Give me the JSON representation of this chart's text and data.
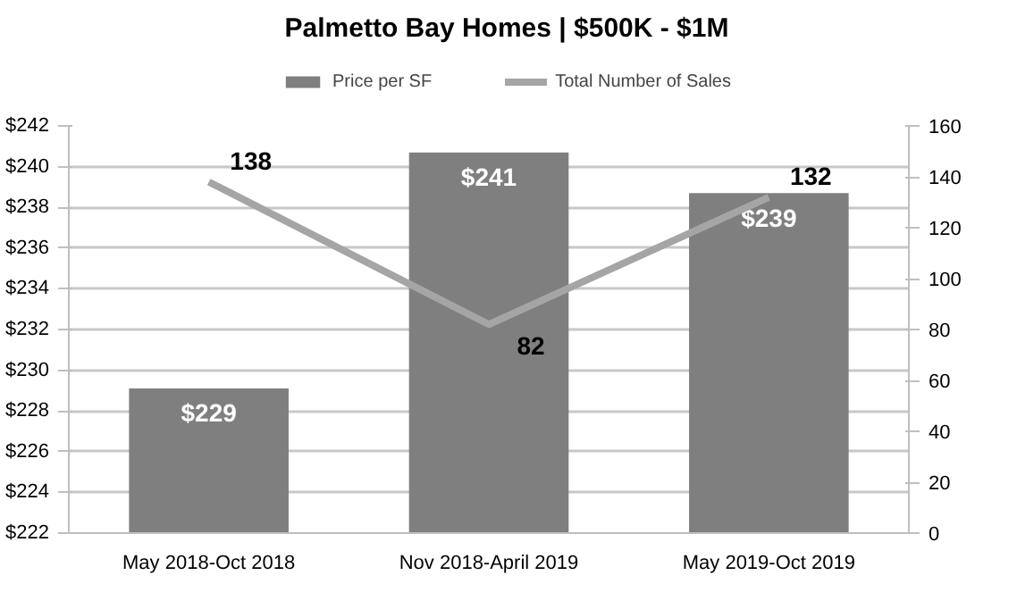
{
  "chart_data": {
    "type": "bar",
    "title": "Palmetto Bay Homes | $500K - $1M",
    "categories": [
      "May 2018-Oct 2018",
      "Nov 2018-April 2019",
      "May 2019-Oct 2019"
    ],
    "series": [
      {
        "name": "Price per SF",
        "color": "#7f7f7f",
        "values": [
          229.1,
          240.7,
          238.7
        ],
        "value_labels": [
          "$229",
          "$241",
          "$239"
        ]
      },
      {
        "name": "Total Number of Sales",
        "type": "line",
        "axis": "y2",
        "color": "#a5a5a5",
        "values": [
          138,
          82,
          132
        ],
        "value_labels": [
          "138",
          "82",
          "132"
        ]
      }
    ],
    "ylim": [
      222,
      242
    ],
    "yticks": [
      {
        "value": 222,
        "label": "$222"
      },
      {
        "value": 224,
        "label": "$224"
      },
      {
        "value": 226,
        "label": "$226"
      },
      {
        "value": 228,
        "label": "$228"
      },
      {
        "value": 230,
        "label": "$230"
      },
      {
        "value": 232,
        "label": "$232"
      },
      {
        "value": 234,
        "label": "$234"
      },
      {
        "value": 236,
        "label": "$236"
      },
      {
        "value": 238,
        "label": "$238"
      },
      {
        "value": 240,
        "label": "$240"
      },
      {
        "value": 242,
        "label": "$242"
      }
    ],
    "y2lim": [
      0,
      160
    ],
    "y2ticks": [
      0,
      20,
      40,
      60,
      80,
      100,
      120,
      140,
      160
    ],
    "grid": "y",
    "legend": "top",
    "marker": "none",
    "line_style": "solid"
  }
}
